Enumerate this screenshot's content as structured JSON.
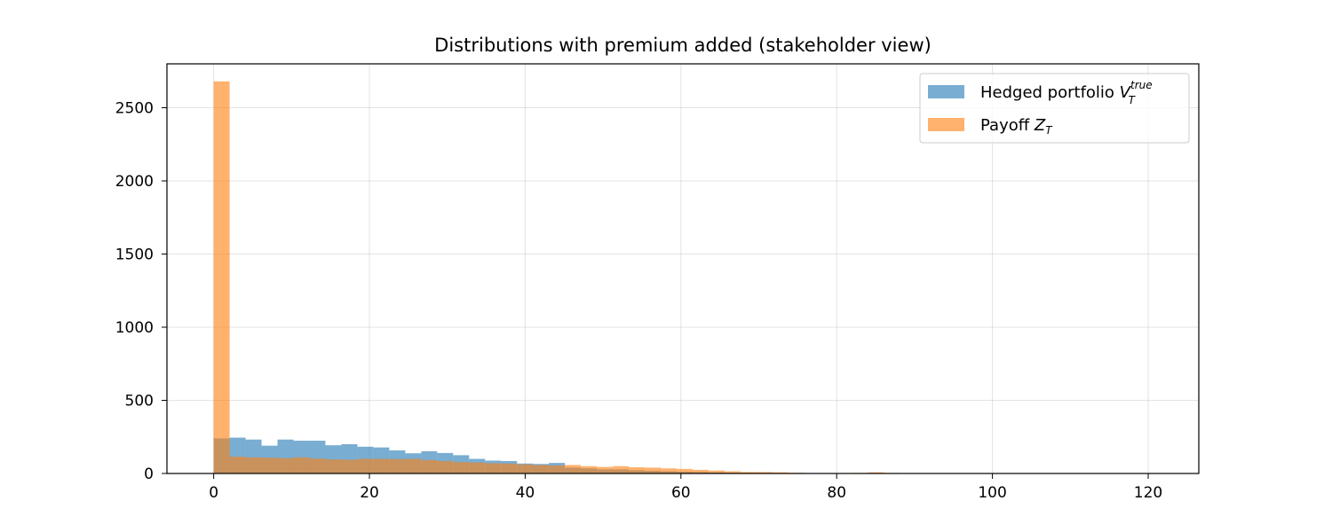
{
  "chart_data": {
    "type": "histogram",
    "title": "Distributions with premium added (stakeholder view)",
    "xlabel": "",
    "ylabel": "",
    "xlim": [
      -6,
      126.5
    ],
    "ylim": [
      0,
      2800
    ],
    "xticks": [
      0,
      20,
      40,
      60,
      80,
      100,
      120
    ],
    "yticks": [
      0,
      500,
      1000,
      1500,
      2000,
      2500
    ],
    "grid": true,
    "legend_position": "top-right",
    "bin_width": 2.05,
    "bin_start": 0,
    "series": [
      {
        "name": "Hedged portfolio V_T^true",
        "legend_main": "Hedged portfolio ",
        "legend_sym": "V",
        "legend_sub": "T",
        "legend_sup": "true",
        "color": "#1f77b4",
        "alpha": 0.6,
        "values": [
          240,
          245,
          232,
          190,
          232,
          224,
          224,
          193,
          200,
          183,
          178,
          158,
          138,
          152,
          140,
          125,
          100,
          88,
          85,
          68,
          65,
          72,
          40,
          35,
          28,
          28,
          22,
          18,
          15,
          12,
          10,
          8,
          5,
          5,
          4,
          3,
          3,
          2,
          2,
          2,
          1,
          1,
          1,
          1,
          0,
          0,
          0,
          0,
          0,
          0,
          0,
          0,
          0,
          0,
          0,
          0,
          0,
          0,
          0
        ]
      },
      {
        "name": "Payoff Z_T",
        "legend_main": "Payoff ",
        "legend_sym": "Z",
        "legend_sub": "T",
        "legend_sup": "",
        "color": "#ff7f0e",
        "alpha": 0.6,
        "values": [
          2680,
          115,
          110,
          108,
          105,
          110,
          102,
          96,
          94,
          100,
          100,
          98,
          100,
          92,
          85,
          78,
          75,
          70,
          68,
          62,
          58,
          55,
          58,
          50,
          45,
          50,
          43,
          40,
          35,
          31,
          25,
          20,
          15,
          10,
          10,
          8,
          5,
          3,
          3,
          3,
          4,
          8,
          4,
          3,
          2,
          2,
          2,
          1,
          1,
          1,
          1,
          1,
          1,
          1,
          1,
          0,
          0,
          0,
          1
        ]
      }
    ]
  }
}
